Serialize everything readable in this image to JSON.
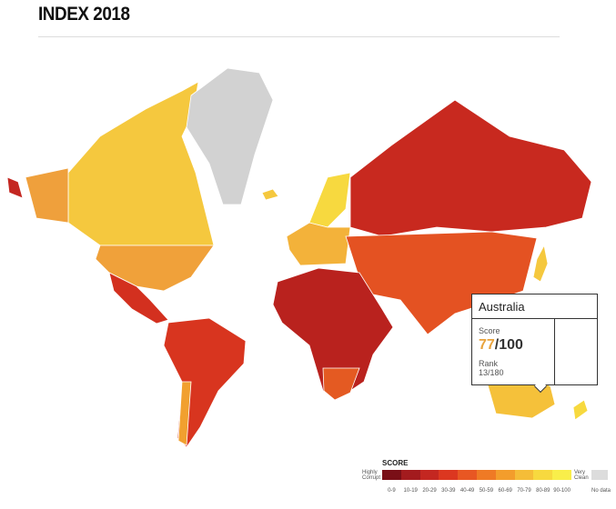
{
  "header": {
    "title": "INDEX 2018"
  },
  "tooltip": {
    "country": "Australia",
    "score_label": "Score",
    "score": 77,
    "score_suffix": "/100",
    "rank_label": "Rank",
    "rank": "13/180"
  },
  "legend": {
    "title": "SCORE",
    "low_label": "Highly Corrupt",
    "high_label": "Very Clean",
    "no_data_label": "No data",
    "no_data_color": "#dcdcdc",
    "bins": [
      {
        "label": "0-9",
        "color": "#7a0f17"
      },
      {
        "label": "10-19",
        "color": "#a31b1e"
      },
      {
        "label": "20-29",
        "color": "#c42721"
      },
      {
        "label": "30-39",
        "color": "#dc3720"
      },
      {
        "label": "40-49",
        "color": "#e85723"
      },
      {
        "label": "50-59",
        "color": "#ef7a25"
      },
      {
        "label": "60-69",
        "color": "#f39d2c"
      },
      {
        "label": "70-79",
        "color": "#f5bd38"
      },
      {
        "label": "80-89",
        "color": "#f7d93f"
      },
      {
        "label": "90-100",
        "color": "#f9ee4a"
      }
    ]
  }
}
